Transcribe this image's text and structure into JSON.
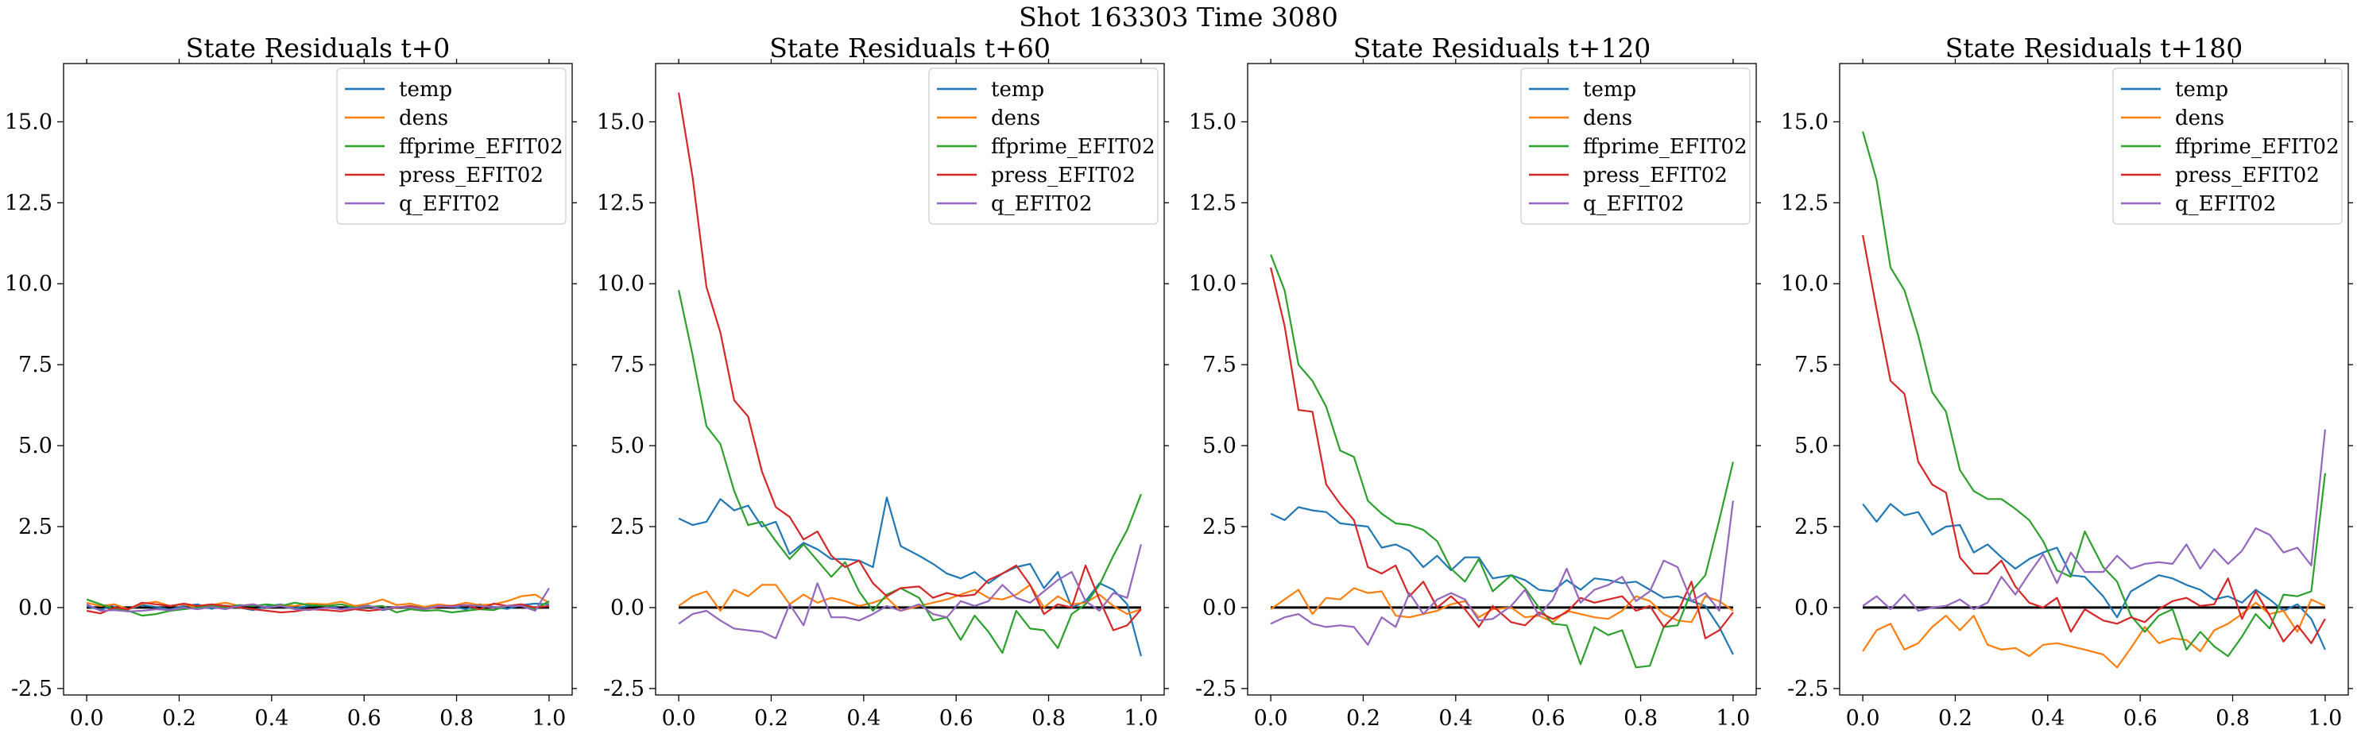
{
  "suptitle": "Shot 163303   Time 3080",
  "legend_labels": [
    "temp",
    "dens",
    "ffprime_EFIT02",
    "press_EFIT02",
    "q_EFIT02"
  ],
  "colors": {
    "temp": "#1f77b4",
    "dens": "#ff7f0e",
    "ffprime_EFIT02": "#2ca02c",
    "press_EFIT02": "#d62728",
    "q_EFIT02": "#9467bd",
    "zero_line": "#000000"
  },
  "chart_data": [
    {
      "type": "line",
      "title": "State Residuals t+0",
      "xlim": [
        -0.05,
        1.05
      ],
      "ylim": [
        -2.7,
        16.8
      ],
      "xticks": [
        "0.0",
        "0.2",
        "0.4",
        "0.6",
        "0.8",
        "1.0"
      ],
      "yticks": [
        "-2.5",
        "0.0",
        "2.5",
        "5.0",
        "7.5",
        "10.0",
        "12.5",
        "15.0"
      ],
      "x": [
        0.0,
        0.03,
        0.06,
        0.09,
        0.12,
        0.15,
        0.18,
        0.21,
        0.24,
        0.27,
        0.3,
        0.33,
        0.36,
        0.39,
        0.42,
        0.45,
        0.48,
        0.52,
        0.55,
        0.58,
        0.61,
        0.64,
        0.67,
        0.7,
        0.73,
        0.76,
        0.79,
        0.82,
        0.85,
        0.88,
        0.91,
        0.94,
        0.97,
        1.0
      ],
      "series": [
        {
          "name": "temp",
          "values": [
            0.05,
            -0.08,
            0.1,
            -0.05,
            0.08,
            0.02,
            -0.06,
            0.05,
            0.1,
            -0.04,
            0.06,
            0.0,
            -0.08,
            0.04,
            0.1,
            -0.02,
            0.05,
            0.08,
            -0.05,
            0.02,
            0.06,
            -0.08,
            0.0,
            0.05,
            -0.02,
            0.08,
            0.03,
            -0.05,
            0.1,
            0.02,
            -0.04,
            0.08,
            0.12,
            0.1
          ]
        },
        {
          "name": "dens",
          "values": [
            0.15,
            0.05,
            0.1,
            -0.05,
            0.12,
            0.18,
            0.05,
            0.1,
            -0.02,
            0.08,
            0.15,
            0.05,
            0.1,
            0.0,
            0.08,
            0.05,
            0.12,
            0.1,
            0.18,
            0.05,
            0.12,
            0.25,
            0.08,
            0.12,
            0.02,
            0.1,
            0.05,
            0.15,
            0.08,
            0.1,
            0.2,
            0.35,
            0.4,
            0.15
          ]
        },
        {
          "name": "ffprime_EFIT02",
          "values": [
            0.25,
            0.1,
            -0.05,
            -0.1,
            -0.25,
            -0.2,
            -0.1,
            -0.05,
            0.0,
            0.05,
            0.0,
            0.08,
            0.05,
            0.1,
            0.05,
            0.15,
            0.08,
            0.05,
            0.1,
            0.0,
            0.02,
            0.05,
            -0.15,
            -0.05,
            -0.1,
            -0.08,
            -0.15,
            -0.1,
            -0.05,
            -0.08,
            0.05,
            0.1,
            -0.05,
            0.2
          ]
        },
        {
          "name": "press_EFIT02",
          "values": [
            -0.1,
            -0.18,
            0.0,
            -0.05,
            0.15,
            0.1,
            0.05,
            0.12,
            0.05,
            0.1,
            0.05,
            0.0,
            -0.05,
            -0.1,
            -0.15,
            -0.12,
            -0.05,
            -0.08,
            -0.12,
            -0.05,
            -0.1,
            -0.05,
            0.0,
            0.05,
            -0.05,
            0.02,
            0.05,
            0.08,
            -0.05,
            0.12,
            0.05,
            0.1,
            0.0,
            0.05
          ]
        },
        {
          "name": "q_EFIT02",
          "values": [
            0.1,
            -0.1,
            -0.08,
            -0.12,
            -0.1,
            -0.05,
            -0.08,
            0.0,
            -0.05,
            0.02,
            -0.05,
            0.05,
            0.1,
            0.0,
            0.05,
            -0.05,
            -0.08,
            0.0,
            -0.05,
            -0.02,
            0.05,
            -0.05,
            0.02,
            0.0,
            -0.05,
            0.05,
            0.02,
            0.08,
            0.05,
            0.0,
            0.05,
            0.05,
            -0.1,
            0.6
          ]
        }
      ]
    },
    {
      "type": "line",
      "title": "State Residuals t+60",
      "xlim": [
        -0.05,
        1.05
      ],
      "ylim": [
        -2.7,
        16.8
      ],
      "xticks": [
        "0.0",
        "0.2",
        "0.4",
        "0.6",
        "0.8",
        "1.0"
      ],
      "yticks": [
        "-2.5",
        "0.0",
        "2.5",
        "5.0",
        "7.5",
        "10.0",
        "12.5",
        "15.0"
      ],
      "x": [
        0.0,
        0.03,
        0.06,
        0.09,
        0.12,
        0.15,
        0.18,
        0.21,
        0.24,
        0.27,
        0.3,
        0.33,
        0.36,
        0.39,
        0.42,
        0.45,
        0.48,
        0.52,
        0.55,
        0.58,
        0.61,
        0.64,
        0.67,
        0.7,
        0.73,
        0.76,
        0.79,
        0.82,
        0.85,
        0.88,
        0.91,
        0.94,
        0.97,
        1.0
      ],
      "series": [
        {
          "name": "temp",
          "values": [
            2.75,
            2.55,
            2.65,
            3.35,
            3.0,
            3.15,
            2.5,
            2.65,
            1.65,
            2.0,
            1.8,
            1.5,
            1.5,
            1.45,
            1.25,
            3.4,
            1.9,
            1.6,
            1.35,
            1.05,
            0.9,
            1.1,
            0.75,
            1.05,
            1.25,
            1.35,
            0.6,
            1.1,
            0.0,
            0.2,
            0.75,
            0.55,
            0.1,
            -1.5
          ]
        },
        {
          "name": "dens",
          "values": [
            0.05,
            0.35,
            0.5,
            -0.1,
            0.55,
            0.35,
            0.7,
            0.7,
            0.1,
            0.4,
            0.15,
            0.3,
            0.2,
            0.05,
            0.15,
            0.3,
            -0.1,
            0.05,
            0.15,
            0.25,
            0.4,
            0.55,
            0.3,
            0.25,
            0.4,
            0.7,
            0.0,
            0.35,
            0.1,
            0.15,
            0.4,
            0.05,
            -0.2,
            -0.05
          ]
        },
        {
          "name": "ffprime_EFIT02",
          "values": [
            9.8,
            7.8,
            5.6,
            5.05,
            3.6,
            2.55,
            2.65,
            2.05,
            1.5,
            1.95,
            1.45,
            0.95,
            1.4,
            0.5,
            -0.1,
            0.4,
            0.6,
            0.3,
            -0.4,
            -0.3,
            -1.0,
            -0.25,
            -0.75,
            -1.4,
            -0.1,
            -0.65,
            -0.7,
            -1.25,
            -0.2,
            0.1,
            0.7,
            1.6,
            2.4,
            3.5
          ]
        },
        {
          "name": "press_EFIT02",
          "values": [
            15.9,
            13.3,
            9.9,
            8.5,
            6.4,
            5.9,
            4.2,
            3.1,
            2.8,
            2.1,
            2.35,
            1.6,
            1.25,
            1.45,
            0.75,
            0.35,
            0.6,
            0.65,
            0.3,
            0.45,
            0.35,
            0.4,
            0.85,
            1.05,
            1.3,
            0.7,
            -0.2,
            0.1,
            0.0,
            1.3,
            0.25,
            -0.7,
            -0.55,
            -0.05
          ]
        },
        {
          "name": "q_EFIT02",
          "values": [
            -0.5,
            -0.2,
            -0.1,
            -0.4,
            -0.65,
            -0.7,
            -0.75,
            -0.95,
            0.1,
            -0.55,
            0.75,
            -0.3,
            -0.3,
            -0.4,
            -0.2,
            0.05,
            -0.1,
            0.1,
            -0.2,
            -0.3,
            0.2,
            0.05,
            0.2,
            0.7,
            0.3,
            0.15,
            0.5,
            0.85,
            1.1,
            0.2,
            -0.1,
            0.45,
            0.3,
            1.95
          ]
        }
      ]
    },
    {
      "type": "line",
      "title": "State Residuals t+120",
      "xlim": [
        -0.05,
        1.05
      ],
      "ylim": [
        -2.7,
        16.8
      ],
      "xticks": [
        "0.0",
        "0.2",
        "0.4",
        "0.6",
        "0.8",
        "1.0"
      ],
      "yticks": [
        "-2.5",
        "0.0",
        "2.5",
        "5.0",
        "7.5",
        "10.0",
        "12.5",
        "15.0"
      ],
      "x": [
        0.0,
        0.03,
        0.06,
        0.09,
        0.12,
        0.15,
        0.18,
        0.21,
        0.24,
        0.27,
        0.3,
        0.33,
        0.36,
        0.39,
        0.42,
        0.45,
        0.48,
        0.52,
        0.55,
        0.58,
        0.61,
        0.64,
        0.67,
        0.7,
        0.73,
        0.76,
        0.79,
        0.82,
        0.85,
        0.88,
        0.91,
        0.94,
        0.97,
        1.0
      ],
      "series": [
        {
          "name": "temp",
          "values": [
            2.9,
            2.7,
            3.1,
            3.0,
            2.95,
            2.6,
            2.55,
            2.5,
            1.85,
            1.95,
            1.75,
            1.25,
            1.6,
            1.15,
            1.55,
            1.55,
            0.9,
            1.0,
            0.85,
            0.55,
            0.5,
            0.85,
            0.55,
            0.9,
            0.85,
            0.75,
            0.8,
            0.55,
            0.3,
            0.35,
            0.2,
            0.05,
            -0.6,
            -1.45
          ]
        },
        {
          "name": "dens",
          "values": [
            -0.05,
            0.25,
            0.55,
            -0.2,
            0.3,
            0.25,
            0.6,
            0.45,
            0.5,
            -0.25,
            -0.3,
            -0.2,
            -0.1,
            0.1,
            0.2,
            -0.3,
            -0.05,
            0.0,
            -0.3,
            -0.25,
            -0.45,
            -0.1,
            -0.2,
            -0.3,
            -0.35,
            -0.1,
            0.35,
            0.2,
            -0.2,
            -0.4,
            -0.45,
            0.35,
            0.2,
            -0.1
          ]
        },
        {
          "name": "ffprime_EFIT02",
          "values": [
            10.9,
            9.8,
            7.5,
            7.0,
            6.2,
            4.85,
            4.65,
            3.3,
            2.9,
            2.6,
            2.55,
            2.4,
            2.05,
            1.2,
            0.8,
            1.5,
            0.5,
            1.0,
            0.6,
            0.0,
            -0.5,
            -0.55,
            -1.75,
            -0.6,
            -0.85,
            -0.7,
            -1.85,
            -1.8,
            -0.6,
            -0.55,
            0.5,
            1.0,
            2.7,
            4.5
          ]
        },
        {
          "name": "press_EFIT02",
          "values": [
            10.5,
            8.7,
            6.1,
            6.05,
            3.8,
            3.2,
            2.7,
            1.25,
            1.05,
            1.3,
            0.35,
            0.8,
            0.0,
            0.35,
            -0.05,
            -0.6,
            0.05,
            -0.45,
            -0.55,
            -0.15,
            -0.35,
            -0.15,
            0.3,
            0.15,
            0.25,
            0.35,
            -0.1,
            0.05,
            -0.6,
            -0.15,
            0.8,
            -0.95,
            -0.7,
            -0.15
          ]
        },
        {
          "name": "q_EFIT02",
          "values": [
            -0.5,
            -0.3,
            -0.2,
            -0.5,
            -0.6,
            -0.55,
            -0.6,
            -1.15,
            -0.3,
            -0.6,
            0.45,
            -0.2,
            0.25,
            0.45,
            0.25,
            -0.4,
            -0.35,
            0.05,
            0.55,
            -0.25,
            0.25,
            1.2,
            0.15,
            0.55,
            0.7,
            0.95,
            0.2,
            0.5,
            1.45,
            1.25,
            0.2,
            0.45,
            -0.1,
            3.3
          ]
        }
      ]
    },
    {
      "type": "line",
      "title": "State Residuals t+180",
      "xlim": [
        -0.05,
        1.05
      ],
      "ylim": [
        -2.7,
        16.8
      ],
      "xticks": [
        "0.0",
        "0.2",
        "0.4",
        "0.6",
        "0.8",
        "1.0"
      ],
      "yticks": [
        "-2.5",
        "0.0",
        "2.5",
        "5.0",
        "7.5",
        "10.0",
        "12.5",
        "15.0"
      ],
      "x": [
        0.0,
        0.03,
        0.06,
        0.09,
        0.12,
        0.15,
        0.18,
        0.21,
        0.24,
        0.27,
        0.3,
        0.33,
        0.36,
        0.39,
        0.42,
        0.45,
        0.48,
        0.52,
        0.55,
        0.58,
        0.61,
        0.64,
        0.67,
        0.7,
        0.73,
        0.76,
        0.79,
        0.82,
        0.85,
        0.88,
        0.91,
        0.94,
        0.97,
        1.0
      ],
      "series": [
        {
          "name": "temp",
          "values": [
            3.2,
            2.65,
            3.2,
            2.85,
            2.95,
            2.25,
            2.5,
            2.55,
            1.7,
            1.95,
            1.55,
            1.2,
            1.5,
            1.7,
            1.85,
            1.0,
            0.95,
            0.35,
            -0.3,
            0.5,
            0.75,
            1.0,
            0.9,
            0.7,
            0.55,
            0.25,
            0.35,
            0.15,
            0.55,
            0.25,
            -0.1,
            0.1,
            -0.35,
            -1.3
          ]
        },
        {
          "name": "dens",
          "values": [
            -1.35,
            -0.7,
            -0.5,
            -1.3,
            -1.1,
            -0.6,
            -0.25,
            -0.7,
            -0.25,
            -1.15,
            -1.3,
            -1.25,
            -1.5,
            -1.15,
            -1.1,
            -1.2,
            -1.3,
            -1.45,
            -1.85,
            -1.25,
            -0.6,
            -1.1,
            -0.95,
            -1.0,
            -1.35,
            -0.7,
            -0.5,
            -0.2,
            0.15,
            -0.2,
            -0.1,
            -0.75,
            0.25,
            0.05
          ]
        },
        {
          "name": "ffprime_EFIT02",
          "values": [
            14.7,
            13.2,
            10.5,
            9.8,
            8.4,
            6.65,
            6.05,
            4.25,
            3.6,
            3.35,
            3.35,
            3.05,
            2.7,
            2.05,
            1.15,
            0.95,
            2.35,
            1.25,
            0.8,
            -0.25,
            -0.75,
            -0.25,
            -0.05,
            -1.3,
            -0.75,
            -1.2,
            -1.5,
            -0.9,
            -0.2,
            -0.65,
            0.4,
            0.35,
            0.5,
            4.15
          ]
        },
        {
          "name": "press_EFIT02",
          "values": [
            11.5,
            9.2,
            7.0,
            6.6,
            4.5,
            3.8,
            3.55,
            1.55,
            1.05,
            1.05,
            1.45,
            0.65,
            0.15,
            0.0,
            0.3,
            -0.75,
            -0.05,
            -0.4,
            -0.5,
            -0.3,
            -0.45,
            -0.05,
            0.2,
            0.3,
            0.05,
            0.1,
            0.9,
            -0.35,
            0.5,
            -0.25,
            -1.05,
            -0.55,
            -1.1,
            -0.35
          ]
        },
        {
          "name": "q_EFIT02",
          "values": [
            0.05,
            0.35,
            -0.05,
            0.4,
            -0.1,
            0.0,
            0.05,
            0.25,
            -0.05,
            0.15,
            0.95,
            0.4,
            1.05,
            1.65,
            0.75,
            1.7,
            1.1,
            1.1,
            1.6,
            1.2,
            1.35,
            1.4,
            1.35,
            1.95,
            1.2,
            1.8,
            1.35,
            1.75,
            2.45,
            2.25,
            1.7,
            1.85,
            1.3,
            5.5
          ]
        }
      ]
    }
  ]
}
